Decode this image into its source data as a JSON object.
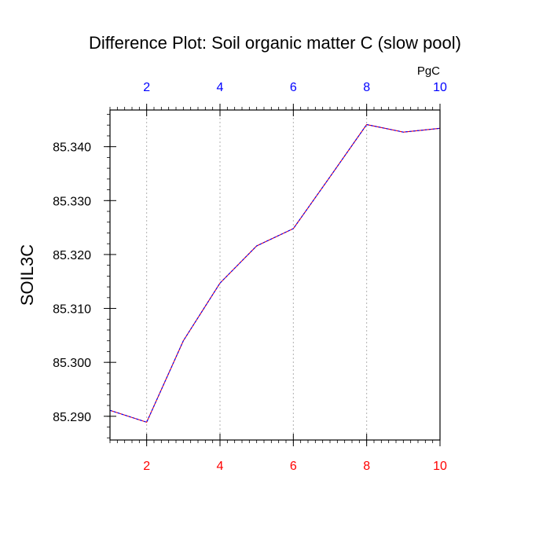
{
  "chart_data": {
    "type": "line",
    "title": "Difference Plot: Soil organic matter C (slow pool)",
    "units": "PgC",
    "ylabel": "SOIL3C",
    "x": [
      1,
      2,
      3,
      4,
      5,
      6,
      7,
      8,
      9,
      10
    ],
    "series": [
      {
        "values": [
          85.2911,
          85.2889,
          85.304,
          85.3147,
          85.3216,
          85.3248,
          85.3344,
          85.3441,
          85.3427,
          85.3434
        ],
        "color_1": "#ff0000",
        "color_2": "#0000ff",
        "dashed": true
      }
    ],
    "xlim": [
      1,
      10
    ],
    "ylim": [
      85.2856,
      85.3468
    ],
    "yticks": [
      85.29,
      85.3,
      85.31,
      85.32,
      85.33,
      85.34
    ],
    "ytick_labels": [
      "85.290",
      "85.300",
      "85.310",
      "85.320",
      "85.330",
      "85.340"
    ],
    "xticks_bottom": [
      2,
      4,
      6,
      8,
      10
    ],
    "xticks_top": [
      2,
      4,
      6,
      8,
      10
    ],
    "bottom_tick_color": "#ff0000",
    "top_tick_color": "#0000ff",
    "grid": "vertical dotted at major x ticks",
    "gridline_color": "#b0b0b0",
    "legend": "none"
  }
}
